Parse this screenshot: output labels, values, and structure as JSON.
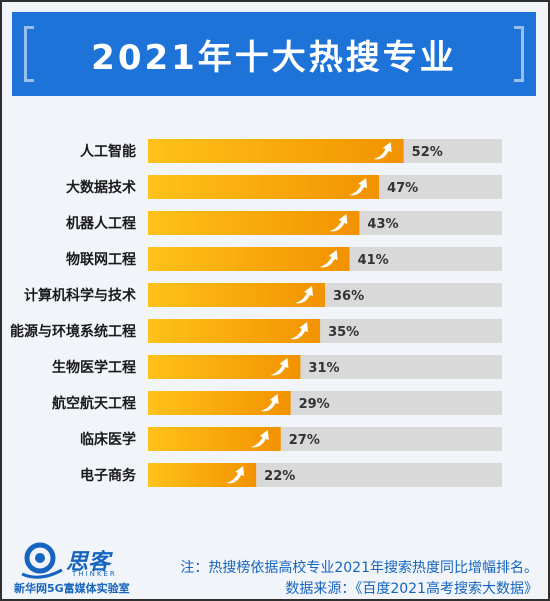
{
  "title": "2021年十大热搜专业",
  "chart_data": {
    "type": "bar",
    "orientation": "horizontal",
    "title": "2021年十大热搜专业",
    "categories": [
      "人工智能",
      "大数据技术",
      "机器人工程",
      "物联网工程",
      "计算机科学与技术",
      "能源与环境系统工程",
      "生物医学工程",
      "航空航天工程",
      "临床医学",
      "电子商务"
    ],
    "values": [
      52,
      47,
      43,
      41,
      36,
      35,
      31,
      29,
      27,
      22
    ],
    "value_labels": [
      "52%",
      "47%",
      "43%",
      "41%",
      "36%",
      "35%",
      "31%",
      "29%",
      "27%",
      "22%"
    ],
    "xlim": [
      0,
      72
    ],
    "colors": {
      "bar_start": "#ffc21a",
      "bar_end": "#f29200",
      "track": "#d9d9d9",
      "arrow": "#ffffff"
    }
  },
  "notes": {
    "line1": "注：热搜榜依据高校专业2021年搜索热度同比增幅排名。",
    "line2": "数据来源：《百度2021高考搜索大数据》"
  },
  "logo": {
    "name": "思客",
    "sub": "THINKER",
    "org": "新华网5G富媒体实验室"
  }
}
